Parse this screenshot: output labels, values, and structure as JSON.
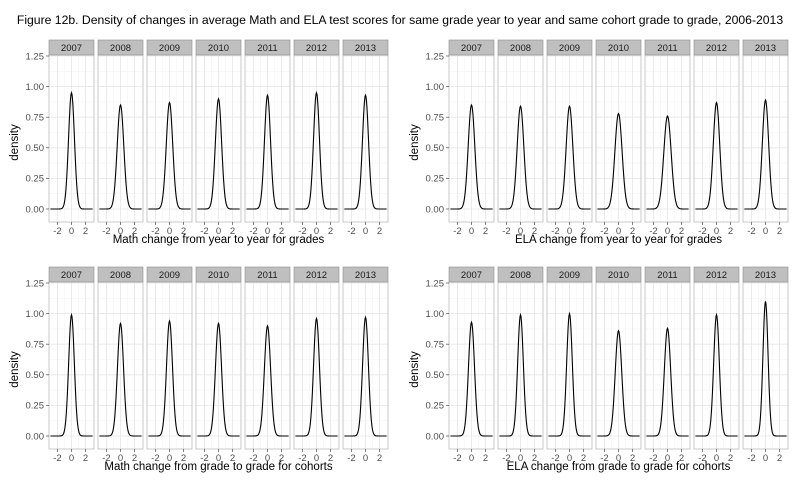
{
  "title": "Figure 12b. Density of changes in average Math and ELA test scores for same grade year to year and same cohort grade to grade, 2006-2013",
  "colors": {
    "strip_fill": "#bfbfbf",
    "strip_border": "#8c8c8c",
    "panel_border": "#bdbdbd",
    "grid_major": "#e6e6e6",
    "grid_minor": "#f4f4f4",
    "line": "#000000"
  },
  "chart_data": [
    {
      "type": "line",
      "facets": [
        "2007",
        "2008",
        "2009",
        "2010",
        "2011",
        "2012",
        "2013"
      ],
      "peaks": [
        0.95,
        0.85,
        0.87,
        0.9,
        0.93,
        0.95,
        0.93
      ],
      "xlabel": "Math change from year to year for grades",
      "ylabel": "density",
      "xticks": [
        "-2",
        "0",
        "2"
      ],
      "yticks": [
        "0.00",
        "0.25",
        "0.50",
        "0.75",
        "1.00",
        "1.25"
      ],
      "xlim": [
        -3.2,
        3.2
      ],
      "ylim": [
        -0.05,
        1.33
      ]
    },
    {
      "type": "line",
      "facets": [
        "2007",
        "2008",
        "2009",
        "2010",
        "2011",
        "2012",
        "2013"
      ],
      "peaks": [
        0.85,
        0.84,
        0.84,
        0.78,
        0.76,
        0.87,
        0.89
      ],
      "xlabel": "ELA change from year to year for grades",
      "ylabel": "density",
      "xticks": [
        "-2",
        "0",
        "2"
      ],
      "yticks": [
        "0.00",
        "0.25",
        "0.50",
        "0.75",
        "1.00",
        "1.25"
      ],
      "xlim": [
        -3.2,
        3.2
      ],
      "ylim": [
        -0.05,
        1.33
      ]
    },
    {
      "type": "line",
      "facets": [
        "2007",
        "2008",
        "2009",
        "2010",
        "2011",
        "2012",
        "2013"
      ],
      "peaks": [
        0.99,
        0.92,
        0.94,
        0.92,
        0.9,
        0.96,
        0.97
      ],
      "xlabel": "Math change from grade to grade for cohorts",
      "ylabel": "density",
      "xticks": [
        "-2",
        "0",
        "2"
      ],
      "yticks": [
        "0.00",
        "0.25",
        "0.50",
        "0.75",
        "1.00",
        "1.25"
      ],
      "xlim": [
        -3.2,
        3.2
      ],
      "ylim": [
        -0.05,
        1.33
      ]
    },
    {
      "type": "line",
      "facets": [
        "2007",
        "2008",
        "2009",
        "2010",
        "2011",
        "2012",
        "2013"
      ],
      "peaks": [
        0.93,
        0.99,
        1.0,
        0.86,
        0.88,
        0.99,
        1.1
      ],
      "xlabel": "ELA change from grade to grade for cohorts",
      "ylabel": "density",
      "xticks": [
        "-2",
        "0",
        "2"
      ],
      "yticks": [
        "0.00",
        "0.25",
        "0.50",
        "0.75",
        "1.00",
        "1.25"
      ],
      "xlim": [
        -3.2,
        3.2
      ],
      "ylim": [
        -0.05,
        1.33
      ]
    }
  ]
}
